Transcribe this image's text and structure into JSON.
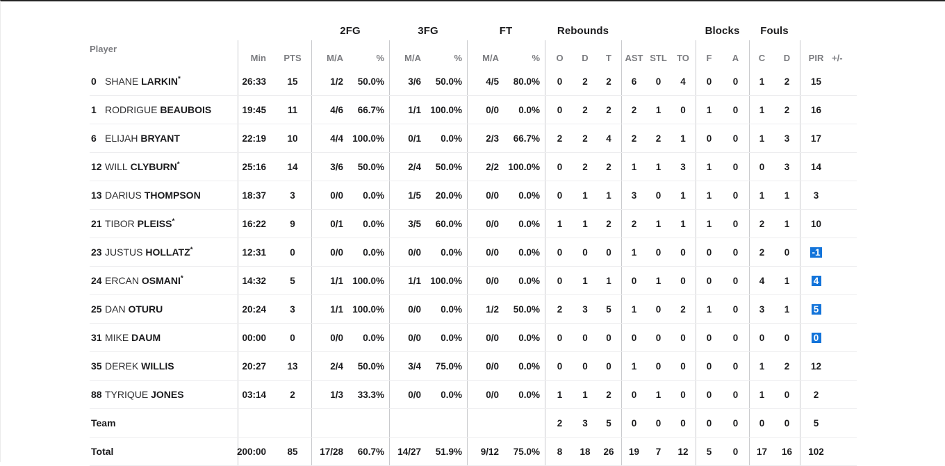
{
  "colors": {
    "highlight_blue": "#1374da",
    "top_border": "#242424",
    "divider": "#c9cacd",
    "row_line": "#ededef",
    "header_gray": "#7b7c80",
    "text_black": "#1b1b1d"
  },
  "table": {
    "groups": {
      "fg2": "2FG",
      "fg3": "3FG",
      "ft": "FT",
      "rebounds": "Rebounds",
      "blocks": "Blocks",
      "fouls": "Fouls"
    },
    "columns": {
      "player": "Player",
      "min": "Min",
      "pts": "PTS",
      "ma": "M/A",
      "pct": "%",
      "reb_o": "O",
      "reb_d": "D",
      "reb_t": "T",
      "ast": "AST",
      "stl": "STL",
      "to": "TO",
      "blk_f": "F",
      "blk_a": "A",
      "foul_c": "C",
      "foul_d": "D",
      "pir": "PIR",
      "pm": "+/-"
    },
    "players": [
      {
        "num": "0",
        "first": "SHANE",
        "last": "LARKIN",
        "starter": true,
        "min": "26:33",
        "pts": "15",
        "fg2_ma": "1/2",
        "fg2_pct": "50.0%",
        "fg3_ma": "3/6",
        "fg3_pct": "50.0%",
        "ft_ma": "4/5",
        "ft_pct": "80.0%",
        "reb_o": "0",
        "reb_d": "2",
        "reb_t": "2",
        "ast": "6",
        "stl": "0",
        "to": "4",
        "blk_f": "0",
        "blk_a": "0",
        "foul_c": "1",
        "foul_d": "2",
        "pir": "15",
        "pm": "",
        "pir_hl": false
      },
      {
        "num": "1",
        "first": "RODRIGUE",
        "last": "BEAUBOIS",
        "starter": false,
        "min": "19:45",
        "pts": "11",
        "fg2_ma": "4/6",
        "fg2_pct": "66.7%",
        "fg3_ma": "1/1",
        "fg3_pct": "100.0%",
        "ft_ma": "0/0",
        "ft_pct": "0.0%",
        "reb_o": "0",
        "reb_d": "2",
        "reb_t": "2",
        "ast": "2",
        "stl": "1",
        "to": "0",
        "blk_f": "1",
        "blk_a": "0",
        "foul_c": "1",
        "foul_d": "2",
        "pir": "16",
        "pm": "",
        "pir_hl": false
      },
      {
        "num": "6",
        "first": "ELIJAH",
        "last": "BRYANT",
        "starter": false,
        "min": "22:19",
        "pts": "10",
        "fg2_ma": "4/4",
        "fg2_pct": "100.0%",
        "fg3_ma": "0/1",
        "fg3_pct": "0.0%",
        "ft_ma": "2/3",
        "ft_pct": "66.7%",
        "reb_o": "2",
        "reb_d": "2",
        "reb_t": "4",
        "ast": "2",
        "stl": "2",
        "to": "1",
        "blk_f": "0",
        "blk_a": "0",
        "foul_c": "1",
        "foul_d": "3",
        "pir": "17",
        "pm": "",
        "pir_hl": false
      },
      {
        "num": "12",
        "first": "WILL",
        "last": "CLYBURN",
        "starter": true,
        "min": "25:16",
        "pts": "14",
        "fg2_ma": "3/6",
        "fg2_pct": "50.0%",
        "fg3_ma": "2/4",
        "fg3_pct": "50.0%",
        "ft_ma": "2/2",
        "ft_pct": "100.0%",
        "reb_o": "0",
        "reb_d": "2",
        "reb_t": "2",
        "ast": "1",
        "stl": "1",
        "to": "3",
        "blk_f": "1",
        "blk_a": "0",
        "foul_c": "0",
        "foul_d": "3",
        "pir": "14",
        "pm": "",
        "pir_hl": false
      },
      {
        "num": "13",
        "first": "DARIUS",
        "last": "THOMPSON",
        "starter": false,
        "min": "18:37",
        "pts": "3",
        "fg2_ma": "0/0",
        "fg2_pct": "0.0%",
        "fg3_ma": "1/5",
        "fg3_pct": "20.0%",
        "ft_ma": "0/0",
        "ft_pct": "0.0%",
        "reb_o": "0",
        "reb_d": "1",
        "reb_t": "1",
        "ast": "3",
        "stl": "0",
        "to": "1",
        "blk_f": "1",
        "blk_a": "0",
        "foul_c": "1",
        "foul_d": "1",
        "pir": "3",
        "pm": "",
        "pir_hl": false
      },
      {
        "num": "21",
        "first": "TIBOR",
        "last": "PLEISS",
        "starter": true,
        "min": "16:22",
        "pts": "9",
        "fg2_ma": "0/1",
        "fg2_pct": "0.0%",
        "fg3_ma": "3/5",
        "fg3_pct": "60.0%",
        "ft_ma": "0/0",
        "ft_pct": "0.0%",
        "reb_o": "1",
        "reb_d": "1",
        "reb_t": "2",
        "ast": "2",
        "stl": "1",
        "to": "1",
        "blk_f": "1",
        "blk_a": "0",
        "foul_c": "2",
        "foul_d": "1",
        "pir": "10",
        "pm": "",
        "pir_hl": false
      },
      {
        "num": "23",
        "first": "JUSTUS",
        "last": "HOLLATZ",
        "starter": true,
        "min": "12:31",
        "pts": "0",
        "fg2_ma": "0/0",
        "fg2_pct": "0.0%",
        "fg3_ma": "0/0",
        "fg3_pct": "0.0%",
        "ft_ma": "0/0",
        "ft_pct": "0.0%",
        "reb_o": "0",
        "reb_d": "0",
        "reb_t": "0",
        "ast": "1",
        "stl": "0",
        "to": "0",
        "blk_f": "0",
        "blk_a": "0",
        "foul_c": "2",
        "foul_d": "0",
        "pir": "-1",
        "pm": "",
        "pir_hl": true
      },
      {
        "num": "24",
        "first": "ERCAN",
        "last": "OSMANI",
        "starter": true,
        "min": "14:32",
        "pts": "5",
        "fg2_ma": "1/1",
        "fg2_pct": "100.0%",
        "fg3_ma": "1/1",
        "fg3_pct": "100.0%",
        "ft_ma": "0/0",
        "ft_pct": "0.0%",
        "reb_o": "0",
        "reb_d": "1",
        "reb_t": "1",
        "ast": "0",
        "stl": "1",
        "to": "0",
        "blk_f": "0",
        "blk_a": "0",
        "foul_c": "4",
        "foul_d": "1",
        "pir": "4",
        "pm": "",
        "pir_hl": true
      },
      {
        "num": "25",
        "first": "DAN",
        "last": "OTURU",
        "starter": false,
        "min": "20:24",
        "pts": "3",
        "fg2_ma": "1/1",
        "fg2_pct": "100.0%",
        "fg3_ma": "0/0",
        "fg3_pct": "0.0%",
        "ft_ma": "1/2",
        "ft_pct": "50.0%",
        "reb_o": "2",
        "reb_d": "3",
        "reb_t": "5",
        "ast": "1",
        "stl": "0",
        "to": "2",
        "blk_f": "1",
        "blk_a": "0",
        "foul_c": "3",
        "foul_d": "1",
        "pir": "5",
        "pm": "",
        "pir_hl": true
      },
      {
        "num": "31",
        "first": "MIKE",
        "last": "DAUM",
        "starter": false,
        "min": "00:00",
        "pts": "0",
        "fg2_ma": "0/0",
        "fg2_pct": "0.0%",
        "fg3_ma": "0/0",
        "fg3_pct": "0.0%",
        "ft_ma": "0/0",
        "ft_pct": "0.0%",
        "reb_o": "0",
        "reb_d": "0",
        "reb_t": "0",
        "ast": "0",
        "stl": "0",
        "to": "0",
        "blk_f": "0",
        "blk_a": "0",
        "foul_c": "0",
        "foul_d": "0",
        "pir": "0",
        "pm": "",
        "pir_hl": true
      },
      {
        "num": "35",
        "first": "DEREK",
        "last": "WILLIS",
        "starter": false,
        "min": "20:27",
        "pts": "13",
        "fg2_ma": "2/4",
        "fg2_pct": "50.0%",
        "fg3_ma": "3/4",
        "fg3_pct": "75.0%",
        "ft_ma": "0/0",
        "ft_pct": "0.0%",
        "reb_o": "0",
        "reb_d": "0",
        "reb_t": "0",
        "ast": "1",
        "stl": "0",
        "to": "0",
        "blk_f": "0",
        "blk_a": "0",
        "foul_c": "1",
        "foul_d": "2",
        "pir": "12",
        "pm": "",
        "pir_hl": false
      },
      {
        "num": "88",
        "first": "TYRIQUE",
        "last": "JONES",
        "starter": false,
        "min": "03:14",
        "pts": "2",
        "fg2_ma": "1/3",
        "fg2_pct": "33.3%",
        "fg3_ma": "0/0",
        "fg3_pct": "0.0%",
        "ft_ma": "0/0",
        "ft_pct": "0.0%",
        "reb_o": "1",
        "reb_d": "1",
        "reb_t": "2",
        "ast": "0",
        "stl": "1",
        "to": "0",
        "blk_f": "0",
        "blk_a": "0",
        "foul_c": "1",
        "foul_d": "0",
        "pir": "2",
        "pm": "",
        "pir_hl": false
      }
    ],
    "summary_rows": [
      {
        "label": "Team",
        "min": "",
        "pts": "",
        "fg2_ma": "",
        "fg2_pct": "",
        "fg3_ma": "",
        "fg3_pct": "",
        "ft_ma": "",
        "ft_pct": "",
        "reb_o": "2",
        "reb_d": "3",
        "reb_t": "5",
        "ast": "0",
        "stl": "0",
        "to": "0",
        "blk_f": "0",
        "blk_a": "0",
        "foul_c": "0",
        "foul_d": "0",
        "pir": "5",
        "pm": "",
        "pir_hl": false
      },
      {
        "label": "Total",
        "min": "200:00",
        "pts": "85",
        "fg2_ma": "17/28",
        "fg2_pct": "60.7%",
        "fg3_ma": "14/27",
        "fg3_pct": "51.9%",
        "ft_ma": "9/12",
        "ft_pct": "75.0%",
        "reb_o": "8",
        "reb_d": "18",
        "reb_t": "26",
        "ast": "19",
        "stl": "7",
        "to": "12",
        "blk_f": "5",
        "blk_a": "0",
        "foul_c": "17",
        "foul_d": "16",
        "pir": "102",
        "pm": "",
        "pir_hl": false
      }
    ]
  }
}
